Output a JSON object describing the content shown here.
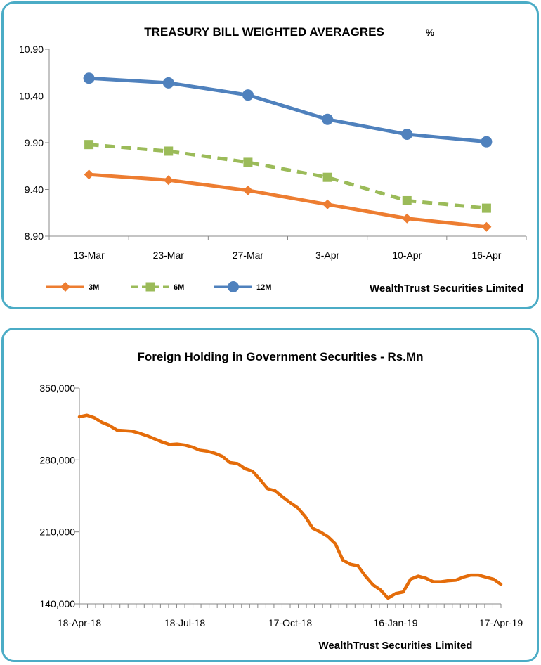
{
  "colors": {
    "border": "#4bacc6",
    "series_3m": "#ed7d31",
    "series_6m": "#9bbb59",
    "series_12m": "#4f81bd",
    "foreign": "#e46c0a"
  },
  "chart_data": [
    {
      "type": "line",
      "title": "TREASURY BILL WEIGHTED AVERAGRES",
      "unit_label": "%",
      "credit": "WealthTrust Securities Limited",
      "categories": [
        "13-Mar",
        "23-Mar",
        "27-Mar",
        "3-Apr",
        "10-Apr",
        "16-Apr"
      ],
      "ylim": [
        8.9,
        10.9
      ],
      "yticks": [
        "10.90",
        "10.40",
        "9.90",
        "9.40",
        "8.90"
      ],
      "grid": false,
      "legend_position": "bottom-left",
      "series": [
        {
          "name": "3M",
          "values": [
            9.56,
            9.5,
            9.39,
            9.24,
            9.09,
            9.0
          ],
          "marker": "diamond",
          "dash": "solid"
        },
        {
          "name": "6M",
          "values": [
            9.88,
            9.81,
            9.69,
            9.53,
            9.28,
            9.2
          ],
          "marker": "square",
          "dash": "dashed"
        },
        {
          "name": "12M",
          "values": [
            10.59,
            10.54,
            10.41,
            10.15,
            9.99,
            9.91
          ],
          "marker": "circle",
          "dash": "solid"
        }
      ]
    },
    {
      "type": "line",
      "title": "Foreign Holding in Government Securities - Rs.Mn",
      "credit": "WealthTrust Securities Limited",
      "ylim": [
        140000,
        350000
      ],
      "yticks": [
        "350,000",
        "280,000",
        "210,000",
        "140,000"
      ],
      "x_labels": [
        "18-Apr-18",
        "18-Jul-18",
        "17-Oct-18",
        "16-Jan-19",
        "17-Apr-19"
      ],
      "grid": false,
      "series": [
        {
          "name": "",
          "values": [
            322000,
            323500,
            321000,
            316500,
            313500,
            309000,
            308500,
            308000,
            306000,
            303500,
            300500,
            297500,
            295000,
            295500,
            294500,
            292500,
            289500,
            288500,
            286500,
            283500,
            277500,
            276500,
            271500,
            269000,
            261000,
            252000,
            250000,
            244000,
            238500,
            233500,
            225000,
            213500,
            210000,
            205500,
            198500,
            182500,
            178500,
            177000,
            167000,
            158500,
            153500,
            145500,
            150000,
            151500,
            164000,
            167000,
            165000,
            161500,
            161500,
            162500,
            163000,
            166000,
            168000,
            168000,
            166000,
            164000,
            159000
          ]
        }
      ]
    }
  ]
}
